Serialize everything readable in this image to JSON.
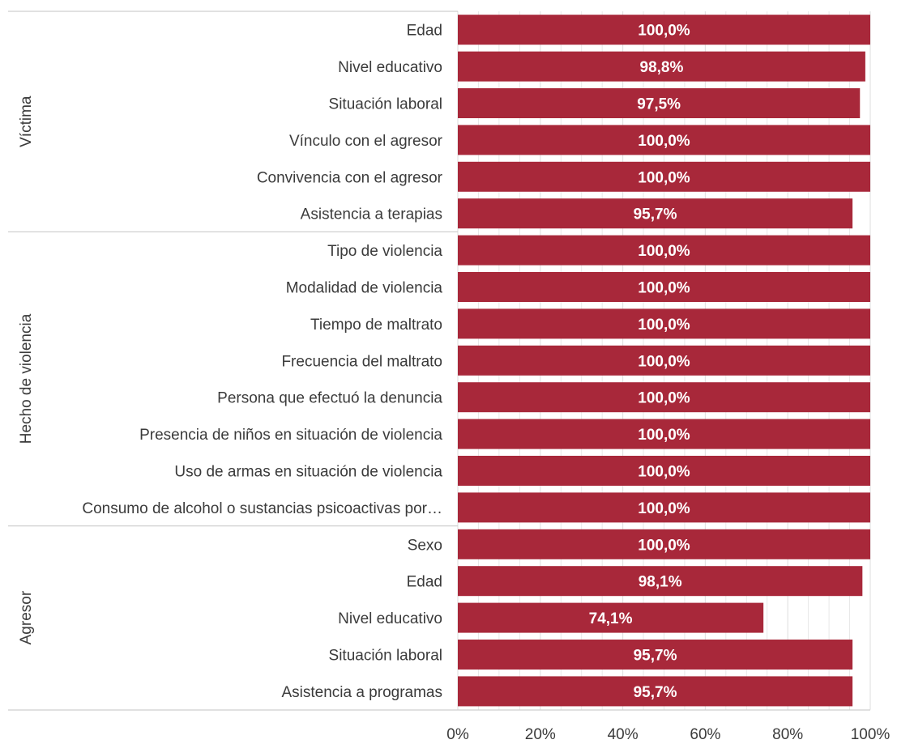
{
  "chart_data": {
    "type": "bar",
    "orientation": "horizontal",
    "groups": [
      {
        "name": "Víctima",
        "rows": [
          {
            "category": "Edad",
            "value": 100.0,
            "label": "100,0%"
          },
          {
            "category": "Nivel educativo",
            "value": 98.8,
            "label": "98,8%"
          },
          {
            "category": "Situación laboral",
            "value": 97.5,
            "label": "97,5%"
          },
          {
            "category": "Vínculo con el agresor",
            "value": 100.0,
            "label": "100,0%"
          },
          {
            "category": "Convivencia con el agresor",
            "value": 100.0,
            "label": "100,0%"
          },
          {
            "category": "Asistencia a terapias",
            "value": 95.7,
            "label": "95,7%"
          }
        ]
      },
      {
        "name": "Hecho de violencia",
        "rows": [
          {
            "category": "Tipo de violencia",
            "value": 100.0,
            "label": "100,0%"
          },
          {
            "category": "Modalidad de violencia",
            "value": 100.0,
            "label": "100,0%"
          },
          {
            "category": "Tiempo de maltrato",
            "value": 100.0,
            "label": "100,0%"
          },
          {
            "category": "Frecuencia del maltrato",
            "value": 100.0,
            "label": "100,0%"
          },
          {
            "category": "Persona que efectuó la denuncia",
            "value": 100.0,
            "label": "100,0%"
          },
          {
            "category": "Presencia de niños en situación de violencia",
            "value": 100.0,
            "label": "100,0%"
          },
          {
            "category": "Uso de armas en situación de violencia",
            "value": 100.0,
            "label": "100,0%"
          },
          {
            "category": "Consumo de alcohol o sustancias psicoactivas por…",
            "value": 100.0,
            "label": "100,0%"
          }
        ]
      },
      {
        "name": "Agresor",
        "rows": [
          {
            "category": "Sexo",
            "value": 100.0,
            "label": "100,0%"
          },
          {
            "category": "Edad",
            "value": 98.1,
            "label": "98,1%"
          },
          {
            "category": "Nivel educativo",
            "value": 74.1,
            "label": "74,1%"
          },
          {
            "category": "Situación laboral",
            "value": 95.7,
            "label": "95,7%"
          },
          {
            "category": "Asistencia a programas",
            "value": 95.7,
            "label": "95,7%"
          }
        ]
      }
    ],
    "xlim": [
      0,
      100
    ],
    "xticks": [
      {
        "value": 0,
        "label": "0%"
      },
      {
        "value": 20,
        "label": "20%"
      },
      {
        "value": 40,
        "label": "40%"
      },
      {
        "value": 60,
        "label": "60%"
      },
      {
        "value": 80,
        "label": "80%"
      },
      {
        "value": 100,
        "label": "100%"
      }
    ],
    "minor_grid_step": 5,
    "grid": true,
    "colors": {
      "bar": "#A8283A",
      "bar_label": "#FFFFFF",
      "text": "#3B3B3B",
      "grid": "#E3E3E3",
      "separator": "#CFCFCF"
    }
  }
}
